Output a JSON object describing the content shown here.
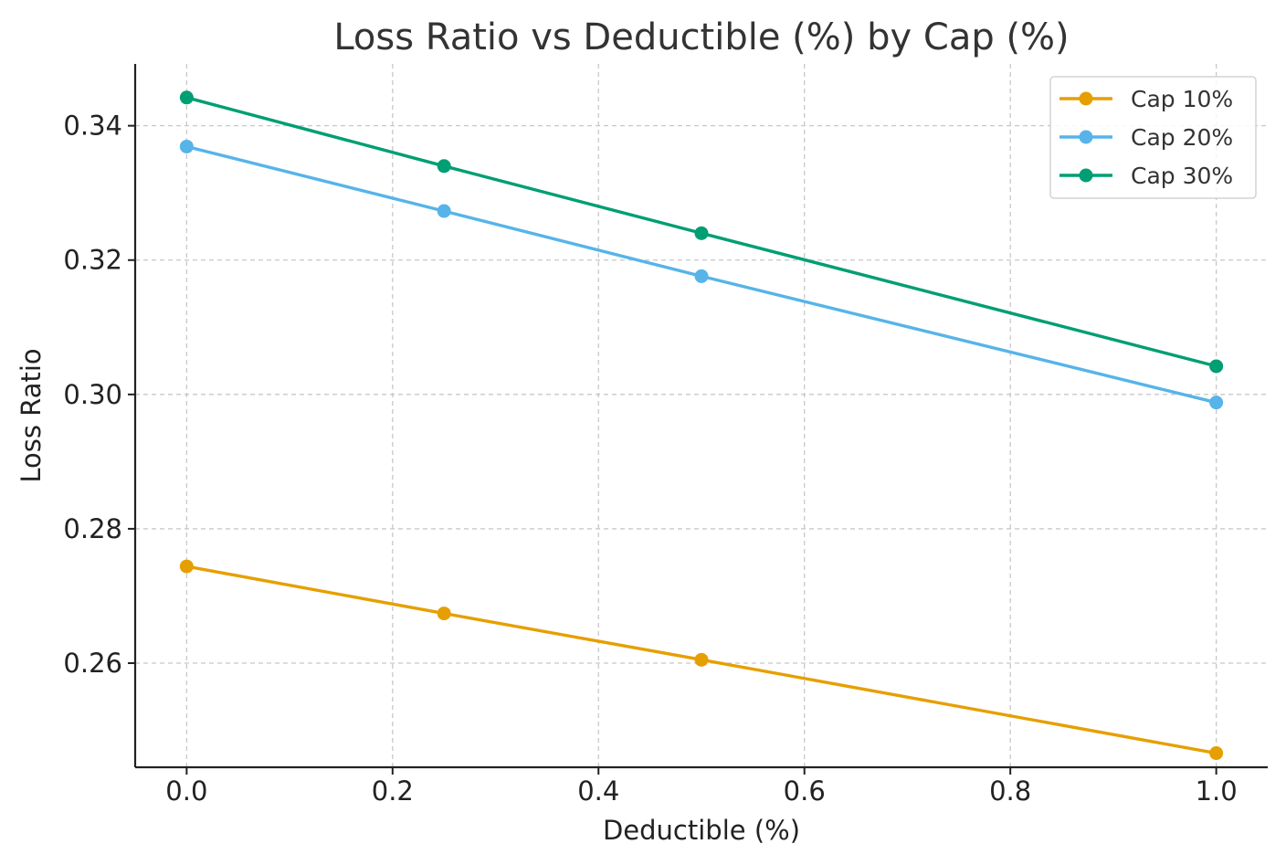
{
  "chart_data": {
    "type": "line",
    "title": "Loss Ratio vs Deductible (%) by Cap (%)",
    "xlabel": "Deductible (%)",
    "ylabel": "Loss Ratio",
    "xlim": [
      -0.05,
      1.05
    ],
    "ylim": [
      0.2445,
      0.3492
    ],
    "x_ticks": [
      0.0,
      0.2,
      0.4,
      0.6,
      0.8,
      1.0
    ],
    "x_tick_labels": [
      "0.0",
      "0.2",
      "0.4",
      "0.6",
      "0.8",
      "1.0"
    ],
    "y_ticks": [
      0.26,
      0.28,
      0.3,
      0.32,
      0.34
    ],
    "y_tick_labels": [
      "0.26",
      "0.28",
      "0.30",
      "0.32",
      "0.34"
    ],
    "grid": true,
    "legend_position": "top-right",
    "x": [
      0.0,
      0.25,
      0.5,
      1.0
    ],
    "series": [
      {
        "name": "Cap 10%",
        "color": "#E69F00",
        "values": [
          0.2744,
          0.2674,
          0.2605,
          0.2466
        ]
      },
      {
        "name": "Cap 20%",
        "color": "#56B4E9",
        "values": [
          0.3369,
          0.3273,
          0.3176,
          0.2988
        ]
      },
      {
        "name": "Cap 30%",
        "color": "#009E73",
        "values": [
          0.3442,
          0.334,
          0.324,
          0.3042
        ]
      }
    ]
  }
}
